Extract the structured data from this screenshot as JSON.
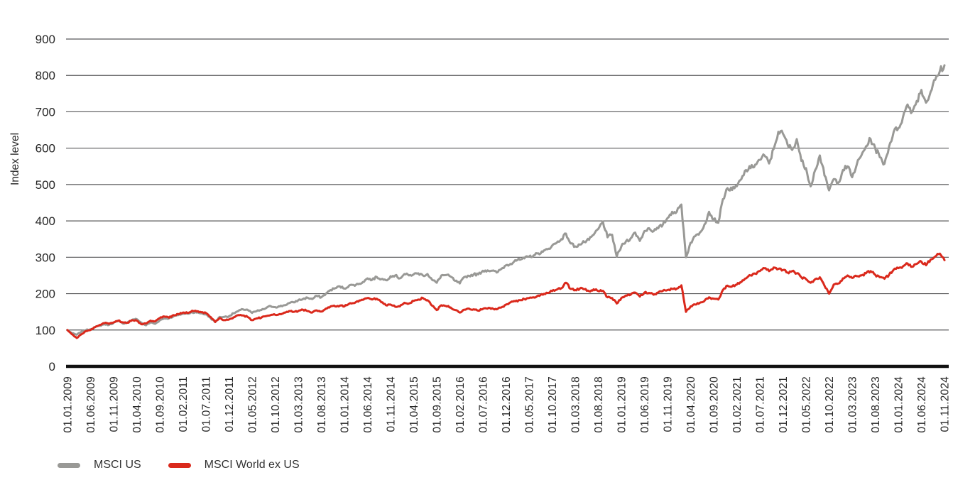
{
  "chart_data": {
    "type": "line",
    "title": "",
    "ylabel": "Index level",
    "ylim": [
      0,
      900
    ],
    "y_ticks": [
      0,
      100,
      200,
      300,
      400,
      500,
      600,
      700,
      800,
      900
    ],
    "grid": true,
    "grid_color": "#58585a",
    "axis_color": "#111111",
    "tick_label_color": "#262626",
    "legend_position": "bottom-left",
    "x_unit": "monthly values from 01.01.2009 to 01.11.2024",
    "tick_interval_months": 5,
    "x_tick_labels": [
      "01.01.2009",
      "01.06.2009",
      "01.11.2009",
      "01.04.2010",
      "01.09.2010",
      "01.02.2011",
      "01.07.2011",
      "01.12.2011",
      "01.05.2012",
      "01.10.2012",
      "01.03.2013",
      "01.08.2013",
      "01.01.2014",
      "01.06.2014",
      "01.11.2014",
      "01.04.2015",
      "01.09.2015",
      "01.02.2016",
      "01.07.2016",
      "01.12.2016",
      "01.05.2017",
      "01.10.2017",
      "01.03.2018",
      "01.08.2018",
      "01.01.2019",
      "01.06.2019",
      "01.11.2019",
      "01.04.2020",
      "01.09.2020",
      "01.02.2021",
      "01.07.2021",
      "01.12.2021",
      "01.05.2022",
      "01.10.2022",
      "01.03.2023",
      "01.08.2023",
      "01.01.2024",
      "01.06.2024",
      "01.11.2024"
    ],
    "series": [
      {
        "name": "MSCI US",
        "id": "msci-us",
        "color": "#999996",
        "values": [
          100,
          91,
          87,
          95,
          100,
          102,
          108,
          112,
          116,
          114,
          120,
          125,
          118,
          121,
          128,
          130,
          120,
          113,
          121,
          117,
          127,
          132,
          132,
          138,
          141,
          145,
          145,
          149,
          148,
          146,
          143,
          133,
          122,
          136,
          136,
          138,
          146,
          152,
          157,
          156,
          147,
          152,
          155,
          160,
          166,
          163,
          165,
          168,
          174,
          176,
          182,
          185,
          189,
          185,
          194,
          190,
          200,
          210,
          215,
          220,
          214,
          222,
          224,
          226,
          232,
          242,
          238,
          246,
          240,
          237,
          248,
          250,
          242,
          254,
          250,
          253,
          256,
          250,
          254,
          238,
          230,
          250,
          251,
          247,
          235,
          228,
          246,
          249,
          253,
          253,
          263,
          264,
          263,
          258,
          268,
          278,
          282,
          292,
          293,
          297,
          302,
          305,
          311,
          315,
          322,
          332,
          340,
          350,
          365,
          338,
          330,
          335,
          342,
          348,
          362,
          378,
          398,
          355,
          362,
          302,
          330,
          344,
          352,
          368,
          345,
          372,
          380,
          372,
          380,
          390,
          408,
          425,
          425,
          445,
          300,
          340,
          358,
          368,
          390,
          425,
          405,
          395,
          460,
          490,
          485,
          495,
          515,
          540,
          545,
          555,
          568,
          580,
          558,
          598,
          645,
          640,
          610,
          595,
          625,
          565,
          545,
          495,
          540,
          580,
          525,
          484,
          515,
          505,
          540,
          550,
          520,
          555,
          580,
          605,
          625,
          600,
          575,
          557,
          605,
          645,
          655,
          685,
          720,
          700,
          730,
          760,
          725,
          755,
          788,
          812,
          828
        ]
      },
      {
        "name": "MSCI World ex US",
        "id": "msci-world-ex-us",
        "color": "#da291c",
        "values": [
          100,
          88,
          78,
          88,
          97,
          100,
          108,
          114,
          119,
          117,
          121,
          126,
          121,
          120,
          127,
          126,
          116,
          118,
          126,
          124,
          133,
          137,
          134,
          141,
          144,
          148,
          147,
          153,
          151,
          149,
          147,
          136,
          122,
          133,
          127,
          129,
          135,
          141,
          140,
          136,
          127,
          132,
          134,
          138,
          141,
          142,
          144,
          148,
          152,
          150,
          152,
          156,
          152,
          148,
          154,
          151,
          159,
          165,
          165,
          167,
          165,
          172,
          174,
          178,
          183,
          188,
          184,
          186,
          176,
          168,
          170,
          164,
          165,
          175,
          173,
          180,
          184,
          188,
          182,
          167,
          155,
          168,
          166,
          162,
          155,
          148,
          156,
          159,
          157,
          153,
          158,
          159,
          160,
          157,
          162,
          170,
          176,
          179,
          182,
          185,
          188,
          190,
          195,
          197,
          202,
          207,
          211,
          215,
          230,
          213,
          210,
          214,
          212,
          207,
          212,
          207,
          208,
          190,
          188,
          173,
          188,
          195,
          197,
          203,
          192,
          203,
          202,
          197,
          203,
          208,
          210,
          213,
          214,
          223,
          150,
          165,
          170,
          175,
          180,
          190,
          186,
          184,
          210,
          222,
          220,
          225,
          232,
          242,
          250,
          255,
          262,
          270,
          262,
          272,
          268,
          265,
          258,
          262,
          256,
          245,
          240,
          230,
          240,
          245,
          222,
          200,
          225,
          228,
          242,
          250,
          243,
          248,
          250,
          256,
          262,
          252,
          245,
          241,
          252,
          266,
          270,
          275,
          283,
          274,
          282,
          288,
          278,
          294,
          302,
          310,
          292
        ]
      }
    ]
  },
  "legend": {
    "items": [
      {
        "label": "MSCI US",
        "color": "#999996"
      },
      {
        "label": "MSCI World ex US",
        "color": "#da291c"
      }
    ]
  }
}
